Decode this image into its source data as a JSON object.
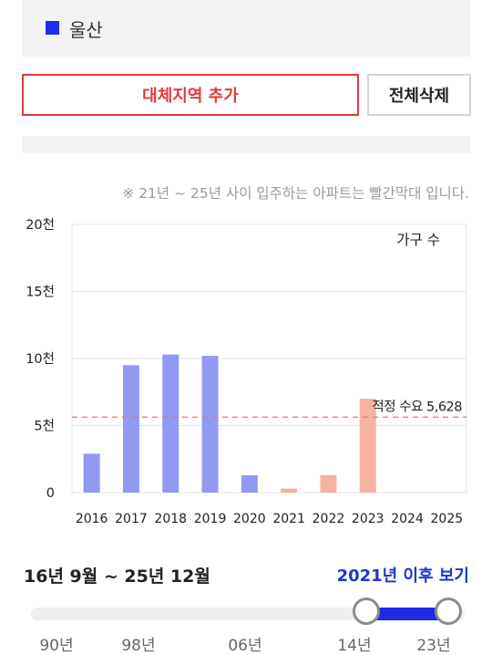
{
  "region": {
    "name": "울산",
    "color": "#1f2be8"
  },
  "buttons": {
    "add_alternate": "대체지역 추가",
    "clear_all": "전체삭제"
  },
  "note": "※ 21년 ~ 25년 사이 입주하는 아파트는 빨간막대 입니다.",
  "chart_data": {
    "type": "bar",
    "categories": [
      "2016",
      "2017",
      "2018",
      "2019",
      "2020",
      "2021",
      "2022",
      "2023",
      "2024",
      "2025"
    ],
    "values": [
      2900,
      9500,
      10300,
      10200,
      1300,
      300,
      1300,
      7000,
      0,
      0
    ],
    "bar_colors": [
      "#9299f2",
      "#9299f2",
      "#9299f2",
      "#9299f2",
      "#9299f2",
      "#f4b2a2",
      "#f4b2a2",
      "#f4b2a2",
      "#f4b2a2",
      "#f4b2a2"
    ],
    "legend": "가구 수",
    "ylim": [
      0,
      20000
    ],
    "yticks": [
      {
        "value": 0,
        "label": "0"
      },
      {
        "value": 5000,
        "label": "5천"
      },
      {
        "value": 10000,
        "label": "10천"
      },
      {
        "value": 15000,
        "label": "15천"
      },
      {
        "value": 20000,
        "label": "20천"
      }
    ],
    "reference_line": {
      "value": 5628,
      "label": "적정 수요 5,628",
      "color": "#e8756a"
    },
    "grid": true
  },
  "period": {
    "label": "16년 9월 ~ 25년 12월",
    "after_link": "2021년 이후 보기"
  },
  "slider": {
    "ticks": [
      "90년",
      "98년",
      "06년",
      "14년",
      "23년"
    ],
    "range_start": "14년",
    "range_end": "23년",
    "accent_color": "#1f2be8"
  }
}
